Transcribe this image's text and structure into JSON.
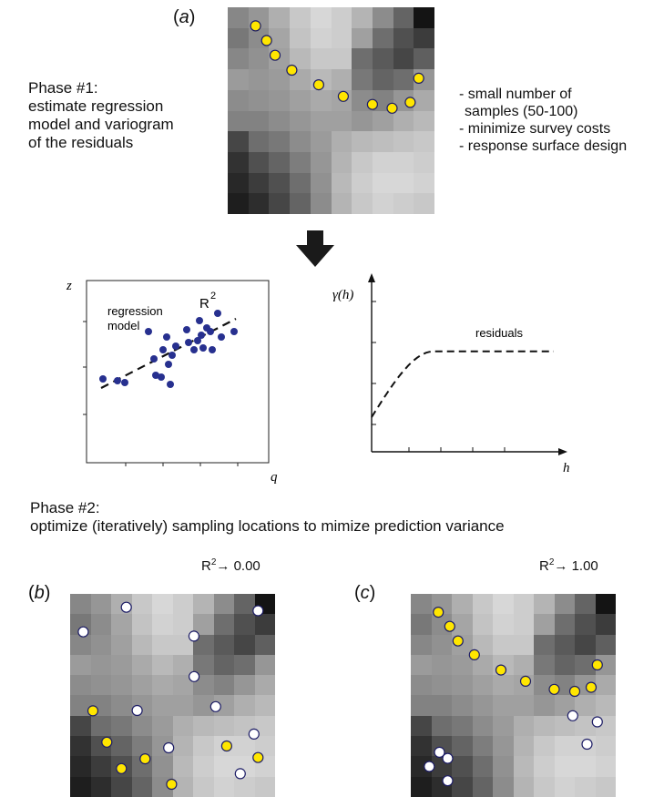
{
  "panel_a": {
    "label_open": "(",
    "label_letter": "a",
    "label_close": ")"
  },
  "phase1": {
    "lines": [
      "Phase #1:",
      "estimate regression",
      "model and variogram",
      "of the residuals"
    ]
  },
  "notes": {
    "lines": [
      "- small number of",
      "samples (50-100)",
      "- minimize survey costs",
      "- response surface design"
    ]
  },
  "regression_plot": {
    "z_label": "z",
    "q_label": "q",
    "model_label_line1": "regression",
    "model_label_line2": "model",
    "r_label": "R",
    "r_sup": "2",
    "chart_data": {
      "type": "scatter",
      "points": [
        [
          0.09,
          0.46
        ],
        [
          0.17,
          0.45
        ],
        [
          0.21,
          0.44
        ],
        [
          0.34,
          0.72
        ],
        [
          0.37,
          0.57
        ],
        [
          0.38,
          0.48
        ],
        [
          0.41,
          0.47
        ],
        [
          0.42,
          0.62
        ],
        [
          0.44,
          0.69
        ],
        [
          0.45,
          0.54
        ],
        [
          0.46,
          0.43
        ],
        [
          0.47,
          0.59
        ],
        [
          0.49,
          0.64
        ],
        [
          0.55,
          0.73
        ],
        [
          0.56,
          0.66
        ],
        [
          0.59,
          0.62
        ],
        [
          0.61,
          0.67
        ],
        [
          0.62,
          0.78
        ],
        [
          0.63,
          0.7
        ],
        [
          0.64,
          0.63
        ],
        [
          0.66,
          0.74
        ],
        [
          0.68,
          0.72
        ],
        [
          0.69,
          0.62
        ],
        [
          0.72,
          0.82
        ],
        [
          0.74,
          0.69
        ],
        [
          0.81,
          0.72
        ]
      ],
      "trend": [
        [
          0.08,
          0.41
        ],
        [
          0.82,
          0.79
        ]
      ]
    }
  },
  "variogram_plot": {
    "y_label": "γ(h)",
    "x_label": "h",
    "curve_label": "residuals",
    "chart_data": {
      "type": "line",
      "nugget": 0.2,
      "sill": 0.58,
      "range": 0.34,
      "x_max": 1.0
    }
  },
  "phase2": {
    "line1": "Phase #2:",
    "line2": "optimize (iteratively) sampling locations to mimize prediction variance"
  },
  "panel_b": {
    "label_open": "(",
    "label_letter": "b",
    "label_close": ")",
    "r_label": "R",
    "r_sup": "2",
    "r_value": "→ 0.00"
  },
  "panel_c": {
    "label_open": "(",
    "label_letter": "c",
    "label_close": ")",
    "r_label": "R",
    "r_sup": "2",
    "r_value": "→ 1.00"
  },
  "colors": {
    "yellow": "#ffe600",
    "white_dot": "#ffffff",
    "dot_stroke": "#1d1d66",
    "scatter": "#27308f"
  },
  "maps": {
    "grid": [
      [
        135,
        150,
        175,
        200,
        215,
        205,
        180,
        140,
        100,
        20
      ],
      [
        120,
        140,
        165,
        195,
        210,
        205,
        160,
        110,
        80,
        60
      ],
      [
        135,
        145,
        160,
        185,
        200,
        200,
        110,
        90,
        70,
        95
      ],
      [
        155,
        150,
        155,
        170,
        185,
        175,
        120,
        100,
        110,
        150
      ],
      [
        140,
        145,
        150,
        160,
        170,
        165,
        140,
        130,
        150,
        170
      ],
      [
        130,
        130,
        140,
        150,
        160,
        160,
        150,
        160,
        175,
        185
      ],
      [
        70,
        110,
        120,
        140,
        155,
        175,
        185,
        190,
        195,
        200
      ],
      [
        50,
        80,
        100,
        125,
        150,
        180,
        200,
        210,
        210,
        205
      ],
      [
        40,
        60,
        80,
        110,
        145,
        185,
        205,
        215,
        215,
        210
      ],
      [
        30,
        45,
        70,
        100,
        140,
        180,
        200,
        210,
        205,
        200
      ]
    ],
    "a_points": [
      [
        0.135,
        0.09,
        "yellow"
      ],
      [
        0.188,
        0.161,
        "yellow"
      ],
      [
        0.229,
        0.232,
        "yellow"
      ],
      [
        0.31,
        0.304,
        "yellow"
      ],
      [
        0.44,
        0.375,
        "yellow"
      ],
      [
        0.559,
        0.431,
        "yellow"
      ],
      [
        0.7,
        0.47,
        "yellow"
      ],
      [
        0.795,
        0.488,
        "yellow"
      ],
      [
        0.883,
        0.46,
        "yellow"
      ],
      [
        0.924,
        0.343,
        "yellow"
      ]
    ],
    "b_points": [
      [
        0.064,
        0.187,
        "white"
      ],
      [
        0.111,
        0.576,
        "yellow"
      ],
      [
        0.179,
        0.73,
        "yellow"
      ],
      [
        0.25,
        0.86,
        "yellow"
      ],
      [
        0.274,
        0.066,
        "white"
      ],
      [
        0.327,
        0.574,
        "white"
      ],
      [
        0.366,
        0.812,
        "yellow"
      ],
      [
        0.481,
        0.758,
        "white"
      ],
      [
        0.495,
        0.937,
        "yellow"
      ],
      [
        0.604,
        0.208,
        "white"
      ],
      [
        0.605,
        0.407,
        "white"
      ],
      [
        0.71,
        0.555,
        "white"
      ],
      [
        0.764,
        0.749,
        "yellow"
      ],
      [
        0.83,
        0.885,
        "white"
      ],
      [
        0.897,
        0.69,
        "white"
      ],
      [
        0.917,
        0.083,
        "white"
      ],
      [
        0.917,
        0.806,
        "yellow"
      ]
    ],
    "c_points": [
      [
        0.134,
        0.09,
        "yellow"
      ],
      [
        0.19,
        0.16,
        "yellow"
      ],
      [
        0.23,
        0.232,
        "yellow"
      ],
      [
        0.31,
        0.3,
        "yellow"
      ],
      [
        0.44,
        0.375,
        "yellow"
      ],
      [
        0.56,
        0.43,
        "yellow"
      ],
      [
        0.7,
        0.47,
        "yellow"
      ],
      [
        0.8,
        0.48,
        "yellow"
      ],
      [
        0.88,
        0.46,
        "yellow"
      ],
      [
        0.91,
        0.35,
        "yellow"
      ],
      [
        0.79,
        0.6,
        "white"
      ],
      [
        0.86,
        0.74,
        "white"
      ],
      [
        0.91,
        0.63,
        "white"
      ],
      [
        0.18,
        0.92,
        "white"
      ],
      [
        0.18,
        0.81,
        "white"
      ],
      [
        0.09,
        0.85,
        "white"
      ],
      [
        0.14,
        0.78,
        "white"
      ]
    ]
  }
}
